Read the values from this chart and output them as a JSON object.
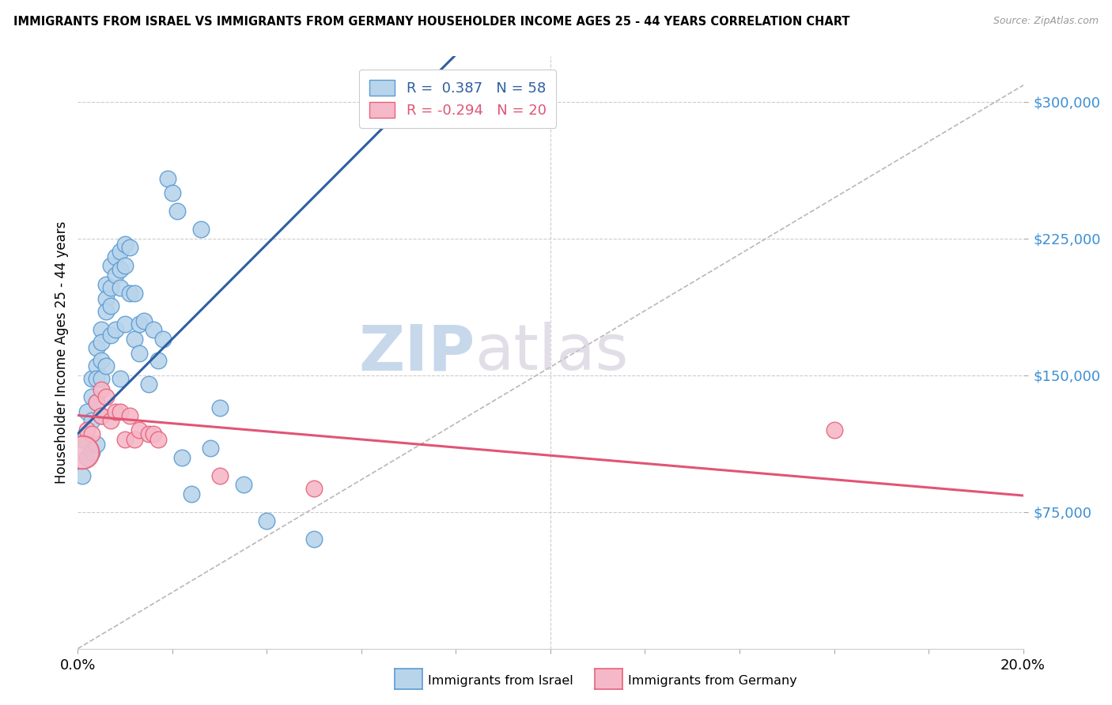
{
  "title": "IMMIGRANTS FROM ISRAEL VS IMMIGRANTS FROM GERMANY HOUSEHOLDER INCOME AGES 25 - 44 YEARS CORRELATION CHART",
  "source": "Source: ZipAtlas.com",
  "ylabel_label": "Householder Income Ages 25 - 44 years",
  "xmin": 0.0,
  "xmax": 0.2,
  "ymin": 0,
  "ymax": 325000,
  "yticks": [
    75000,
    150000,
    225000,
    300000
  ],
  "ytick_labels": [
    "$75,000",
    "$150,000",
    "$225,000",
    "$300,000"
  ],
  "xticks": [
    0.0,
    0.02,
    0.04,
    0.06,
    0.08,
    0.1,
    0.12,
    0.14,
    0.16,
    0.18,
    0.2
  ],
  "xtick_labels": [
    "0.0%",
    "",
    "",
    "",
    "",
    "",
    "",
    "",
    "",
    "",
    "20.0%"
  ],
  "legend_israel_r": "0.387",
  "legend_israel_n": "58",
  "legend_germany_r": "-0.294",
  "legend_germany_n": "20",
  "israel_color": "#b8d4ea",
  "israel_edge_color": "#5b9bd5",
  "germany_color": "#f5b8c8",
  "germany_edge_color": "#e8627a",
  "israel_line_color": "#2e5fa3",
  "germany_line_color": "#e05575",
  "trend_dash_color": "#b8b8b8",
  "watermark_zip": "ZIP",
  "watermark_atlas": "atlas",
  "israel_x": [
    0.001,
    0.001,
    0.002,
    0.002,
    0.003,
    0.003,
    0.003,
    0.003,
    0.004,
    0.004,
    0.004,
    0.004,
    0.004,
    0.005,
    0.005,
    0.005,
    0.005,
    0.005,
    0.006,
    0.006,
    0.006,
    0.006,
    0.007,
    0.007,
    0.007,
    0.007,
    0.008,
    0.008,
    0.008,
    0.009,
    0.009,
    0.009,
    0.009,
    0.01,
    0.01,
    0.01,
    0.011,
    0.011,
    0.012,
    0.012,
    0.013,
    0.013,
    0.014,
    0.015,
    0.016,
    0.017,
    0.018,
    0.019,
    0.02,
    0.021,
    0.022,
    0.024,
    0.026,
    0.028,
    0.03,
    0.035,
    0.04,
    0.05
  ],
  "israel_y": [
    115000,
    95000,
    130000,
    105000,
    148000,
    138000,
    125000,
    108000,
    165000,
    155000,
    148000,
    135000,
    112000,
    175000,
    168000,
    158000,
    148000,
    128000,
    200000,
    192000,
    185000,
    155000,
    210000,
    198000,
    188000,
    172000,
    215000,
    205000,
    175000,
    218000,
    208000,
    198000,
    148000,
    222000,
    210000,
    178000,
    220000,
    195000,
    195000,
    170000,
    178000,
    162000,
    180000,
    145000,
    175000,
    158000,
    170000,
    258000,
    250000,
    240000,
    105000,
    85000,
    230000,
    110000,
    132000,
    90000,
    70000,
    60000
  ],
  "germany_x": [
    0.001,
    0.002,
    0.003,
    0.004,
    0.005,
    0.005,
    0.006,
    0.007,
    0.008,
    0.009,
    0.01,
    0.011,
    0.012,
    0.013,
    0.015,
    0.016,
    0.017,
    0.03,
    0.05,
    0.16
  ],
  "germany_y": [
    108000,
    120000,
    118000,
    135000,
    128000,
    142000,
    138000,
    125000,
    130000,
    130000,
    115000,
    128000,
    115000,
    120000,
    118000,
    118000,
    115000,
    95000,
    88000,
    120000
  ],
  "germany_large_x": [
    0.001
  ],
  "germany_large_y": [
    108000
  ]
}
